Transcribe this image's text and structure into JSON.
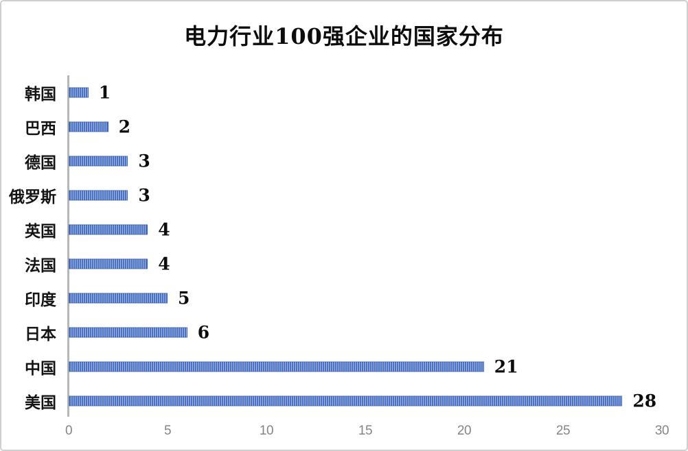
{
  "page": {
    "background_color": "#ffffff",
    "border_color": "#cfcfcf"
  },
  "chart_data": {
    "type": "bar",
    "orientation": "horizontal",
    "title": "电力行业100强企业的国家分布",
    "xlabel": "",
    "ylabel": "",
    "categories": [
      "韩国",
      "巴西",
      "德国",
      "俄罗斯",
      "英国",
      "法国",
      "印度",
      "日本",
      "中国",
      "美国"
    ],
    "values": [
      1,
      2,
      3,
      3,
      4,
      4,
      5,
      6,
      21,
      28
    ],
    "data_labels_shown": true,
    "xlim": [
      0,
      30
    ],
    "xticks": [
      0,
      5,
      10,
      15,
      20,
      25,
      30
    ],
    "grid": false,
    "legend": null,
    "bar_fill_pattern": "vertical-stripes",
    "bar_color": "#4a72c4",
    "bar_stripe_color": "#a4b8e2",
    "axis_line_color": "#b6b6b6",
    "tick_label_color": "#858585",
    "title_color": "#0d0d0d",
    "value_label_color": "#0d0d0d"
  }
}
